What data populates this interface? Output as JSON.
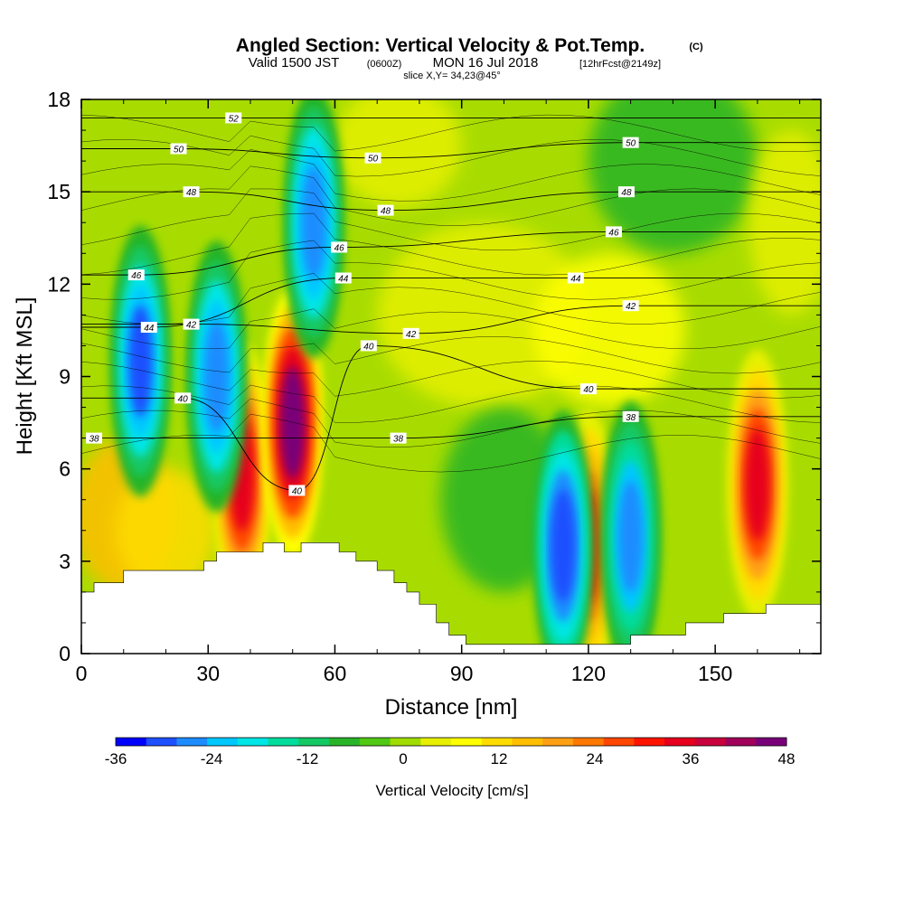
{
  "chart_data": {
    "type": "heatmap",
    "title": "Angled Section: Vertical Velocity & Pot.Temp.",
    "title_suffix": "(C)",
    "subtitle": {
      "valid_prefix": "Valid 1500 JST",
      "zulu": "(0600Z)",
      "date": "MON 16 Jul 2018",
      "forecast": "[12hrFcst@2149z]"
    },
    "slice_text": "slice X,Y= 34,23@45°",
    "xlabel": "Distance [nm]",
    "ylabel": "Height [Kft MSL]",
    "xlim": [
      0,
      175
    ],
    "ylim": [
      0,
      18
    ],
    "xticks": [
      "0",
      "30",
      "60",
      "90",
      "120",
      "150"
    ],
    "yticks": [
      "0",
      "3",
      "6",
      "9",
      "12",
      "15",
      "18"
    ],
    "colorbar": {
      "label": "Vertical Velocity [cm/s]",
      "min": -36,
      "max": 48,
      "step": 4,
      "tick_labels": [
        "-36",
        "-24",
        "-12",
        "0",
        "12",
        "24",
        "36",
        "48"
      ],
      "colors": [
        "#0000ff",
        "#1e50ff",
        "#1e8cff",
        "#00c8ff",
        "#00e6e6",
        "#00dc9b",
        "#14c864",
        "#28b428",
        "#50c814",
        "#a0dc00",
        "#e6f000",
        "#ffff00",
        "#ffdc00",
        "#ffbe00",
        "#ffa014",
        "#ff7800",
        "#ff4600",
        "#ff1400",
        "#e6001e",
        "#c8003c",
        "#a0005a",
        "#780078"
      ]
    },
    "terrain_kft": [
      [
        0,
        2.0
      ],
      [
        3,
        2.0
      ],
      [
        3,
        2.3
      ],
      [
        10,
        2.3
      ],
      [
        10,
        2.7
      ],
      [
        29,
        2.7
      ],
      [
        29,
        3.0
      ],
      [
        32,
        3.0
      ],
      [
        32,
        3.3
      ],
      [
        43,
        3.3
      ],
      [
        43,
        3.6
      ],
      [
        48,
        3.6
      ],
      [
        48,
        3.3
      ],
      [
        52,
        3.3
      ],
      [
        52,
        3.6
      ],
      [
        61,
        3.6
      ],
      [
        61,
        3.3
      ],
      [
        65,
        3.3
      ],
      [
        65,
        3.0
      ],
      [
        70,
        3.0
      ],
      [
        70,
        2.7
      ],
      [
        74,
        2.7
      ],
      [
        74,
        2.3
      ],
      [
        77,
        2.3
      ],
      [
        77,
        2.0
      ],
      [
        80,
        2.0
      ],
      [
        80,
        1.6
      ],
      [
        84,
        1.6
      ],
      [
        84,
        1.0
      ],
      [
        87,
        1.0
      ],
      [
        87,
        0.6
      ],
      [
        91,
        0.6
      ],
      [
        91,
        0.3
      ],
      [
        130,
        0.3
      ],
      [
        130,
        0.6
      ],
      [
        143,
        0.6
      ],
      [
        143,
        1.0
      ],
      [
        152,
        1.0
      ],
      [
        152,
        1.3
      ],
      [
        162,
        1.3
      ],
      [
        162,
        1.6
      ],
      [
        175,
        1.6
      ]
    ],
    "updraft_cores": [
      {
        "x": 38,
        "y": 5.8,
        "value": 36
      },
      {
        "x": 50,
        "y": 7.5,
        "value": 48
      },
      {
        "x": 120,
        "y": 3.5,
        "value": 32
      },
      {
        "x": 160,
        "y": 5.5,
        "value": 36
      }
    ],
    "downdraft_cores": [
      {
        "x": 14,
        "y": 9.5,
        "value": -30
      },
      {
        "x": 32,
        "y": 9.0,
        "value": -28
      },
      {
        "x": 55,
        "y": 14.0,
        "value": -28
      },
      {
        "x": 114,
        "y": 3.5,
        "value": -32
      },
      {
        "x": 130,
        "y": 3.8,
        "value": -26
      }
    ],
    "pot_temp_contours": [
      {
        "label": "38",
        "x": 3,
        "y": 7.0
      },
      {
        "label": "38",
        "x": 75,
        "y": 7.0
      },
      {
        "label": "38",
        "x": 130,
        "y": 7.7
      },
      {
        "label": "40",
        "x": 24,
        "y": 8.3
      },
      {
        "label": "40",
        "x": 51,
        "y": 5.3
      },
      {
        "label": "40",
        "x": 68,
        "y": 10.0
      },
      {
        "label": "40",
        "x": 120,
        "y": 8.6
      },
      {
        "label": "42",
        "x": 26,
        "y": 10.7
      },
      {
        "label": "42",
        "x": 78,
        "y": 10.4
      },
      {
        "label": "42",
        "x": 130,
        "y": 11.3
      },
      {
        "label": "44",
        "x": 16,
        "y": 10.6
      },
      {
        "label": "44",
        "x": 62,
        "y": 12.2
      },
      {
        "label": "44",
        "x": 117,
        "y": 12.2
      },
      {
        "label": "46",
        "x": 13,
        "y": 12.3
      },
      {
        "label": "46",
        "x": 61,
        "y": 13.2
      },
      {
        "label": "46",
        "x": 126,
        "y": 13.7
      },
      {
        "label": "48",
        "x": 26,
        "y": 15.0
      },
      {
        "label": "48",
        "x": 72,
        "y": 14.4
      },
      {
        "label": "48",
        "x": 129,
        "y": 15.0
      },
      {
        "label": "50",
        "x": 23,
        "y": 16.4
      },
      {
        "label": "50",
        "x": 69,
        "y": 16.1
      },
      {
        "label": "50",
        "x": 130,
        "y": 16.6
      },
      {
        "label": "52",
        "x": 36,
        "y": 17.4
      }
    ]
  }
}
